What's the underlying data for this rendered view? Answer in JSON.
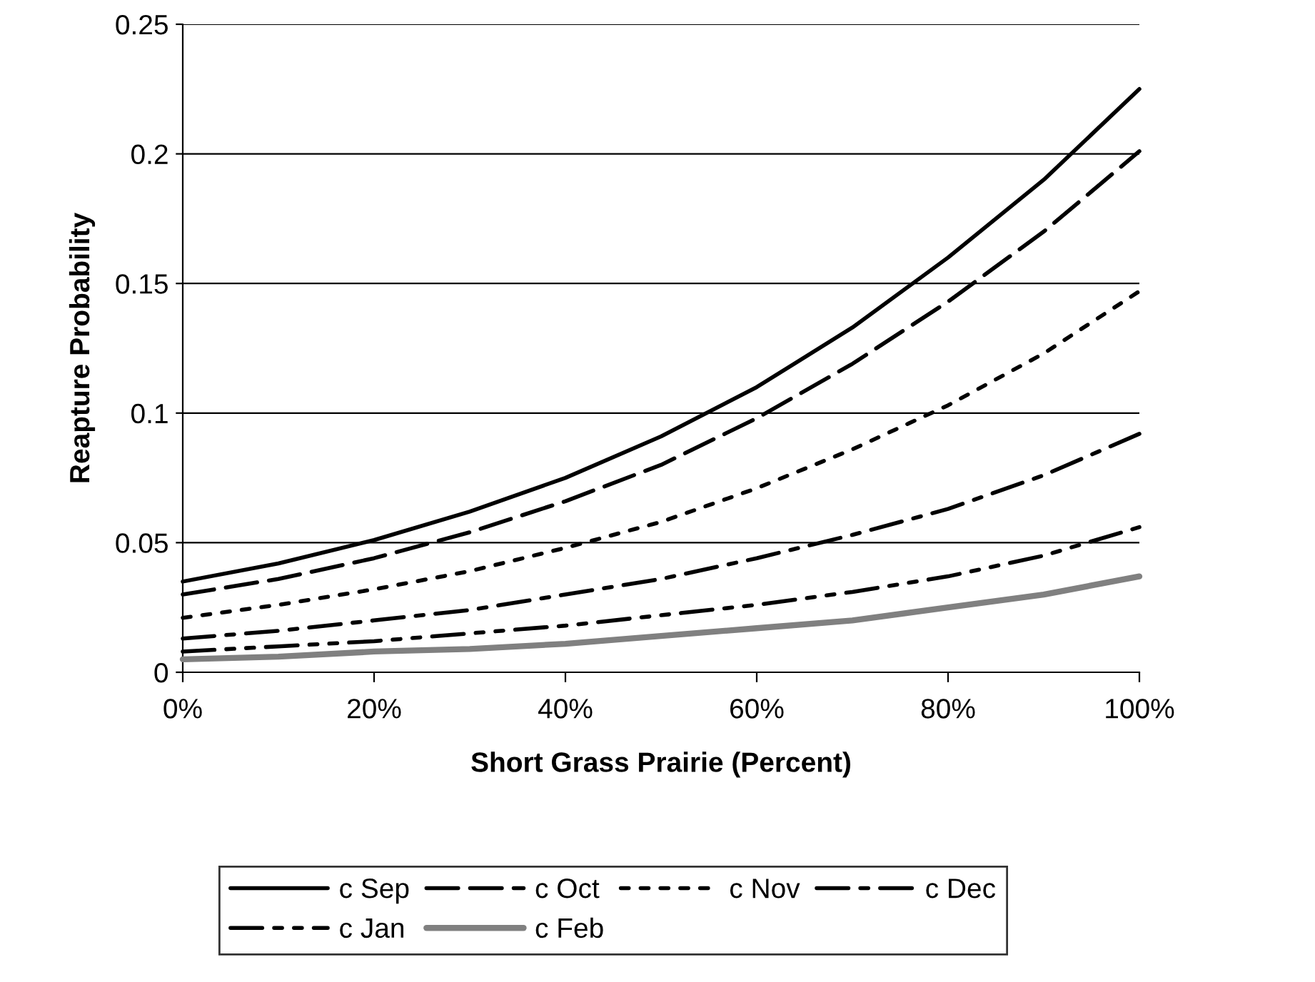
{
  "chart_data": {
    "type": "line",
    "xlabel": "Short Grass Prairie (Percent)",
    "ylabel": "Reapture Probability",
    "x": [
      0,
      10,
      20,
      30,
      40,
      50,
      60,
      70,
      80,
      90,
      100
    ],
    "xlim": [
      0,
      100
    ],
    "xticks": [
      {
        "value": 0,
        "label": "0%"
      },
      {
        "value": 20,
        "label": "20%"
      },
      {
        "value": 40,
        "label": "40%"
      },
      {
        "value": 60,
        "label": "60%"
      },
      {
        "value": 80,
        "label": "80%"
      },
      {
        "value": 100,
        "label": "100%"
      }
    ],
    "ylim": [
      0,
      0.25
    ],
    "yticks": [
      0,
      0.05,
      0.1,
      0.15,
      0.2,
      0.25
    ],
    "grid": "y",
    "legend": "bottom",
    "marker": "none",
    "series": [
      {
        "name": "c Sep",
        "color": "#000000",
        "line_style": "solid",
        "values": [
          0.035,
          0.042,
          0.051,
          0.062,
          0.075,
          0.091,
          0.11,
          0.133,
          0.16,
          0.19,
          0.225
        ]
      },
      {
        "name": "c Oct",
        "color": "#000000",
        "line_style": "dashed",
        "values": [
          0.03,
          0.036,
          0.044,
          0.054,
          0.066,
          0.08,
          0.098,
          0.119,
          0.143,
          0.17,
          0.201
        ]
      },
      {
        "name": "c Nov",
        "color": "#000000",
        "line_style": "dotted",
        "values": [
          0.021,
          0.026,
          0.032,
          0.039,
          0.048,
          0.058,
          0.071,
          0.086,
          0.103,
          0.123,
          0.147
        ]
      },
      {
        "name": "c Dec",
        "color": "#000000",
        "line_style": "dashdot",
        "values": [
          0.013,
          0.016,
          0.02,
          0.024,
          0.03,
          0.036,
          0.044,
          0.053,
          0.063,
          0.076,
          0.092
        ]
      },
      {
        "name": "c Jan",
        "color": "#000000",
        "line_style": "dashdotdot",
        "values": [
          0.008,
          0.01,
          0.012,
          0.015,
          0.018,
          0.022,
          0.026,
          0.031,
          0.037,
          0.045,
          0.056
        ]
      },
      {
        "name": "c Feb",
        "color": "#808080",
        "line_style": "solid",
        "values": [
          0.005,
          0.006,
          0.008,
          0.009,
          0.011,
          0.014,
          0.017,
          0.02,
          0.025,
          0.03,
          0.037
        ]
      }
    ]
  }
}
